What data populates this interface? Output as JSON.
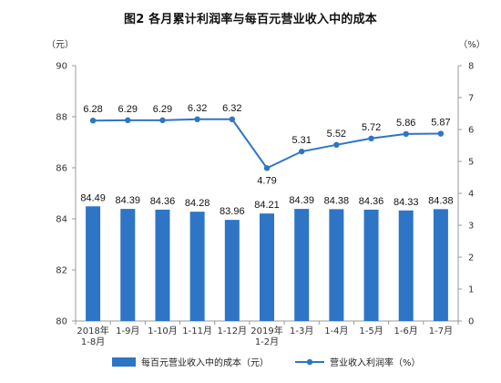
{
  "chart_data": {
    "type": "bar+line",
    "title": "图2 各月累计利润率与每百元营业收入中的成本",
    "left_axis_unit": "（元）",
    "right_axis_unit": "（%）",
    "categories": [
      [
        "2018年",
        "1-8月"
      ],
      [
        "1-9月"
      ],
      [
        "1-10月"
      ],
      [
        "1-11月"
      ],
      [
        "1-12月"
      ],
      [
        "2019年",
        "1-2月"
      ],
      [
        "1-3月"
      ],
      [
        "1-4月"
      ],
      [
        "1-5月"
      ],
      [
        "1-6月"
      ],
      [
        "1-7月"
      ]
    ],
    "series": [
      {
        "name": "每百元营业收入中的成本（元）",
        "type": "bar",
        "axis": "left",
        "values": [
          84.49,
          84.39,
          84.36,
          84.28,
          83.96,
          84.21,
          84.39,
          84.38,
          84.36,
          84.33,
          84.38
        ],
        "labels": [
          "84.49",
          "84.39",
          "84.36",
          "84.28",
          "83.96",
          "84.21",
          "84.39",
          "84.38",
          "84.36",
          "84.33",
          "84.38"
        ],
        "color": "#2e75c5"
      },
      {
        "name": "营业收入利润率（%）",
        "type": "line",
        "axis": "right",
        "values": [
          6.28,
          6.29,
          6.29,
          6.32,
          6.32,
          4.79,
          5.31,
          5.52,
          5.72,
          5.86,
          5.87
        ],
        "labels": [
          "6.28",
          "6.29",
          "6.29",
          "6.32",
          "6.32",
          "4.79",
          "5.31",
          "5.52",
          "5.72",
          "5.86",
          "5.87"
        ],
        "color": "#2e75c5"
      }
    ],
    "y_left": {
      "min": 80,
      "max": 90,
      "ticks": [
        80,
        82,
        84,
        86,
        88,
        90
      ]
    },
    "y_right": {
      "min": 0,
      "max": 8,
      "ticks": [
        0,
        1,
        2,
        3,
        4,
        5,
        6,
        7,
        8
      ]
    },
    "grid": false,
    "legend_position": "bottom"
  }
}
